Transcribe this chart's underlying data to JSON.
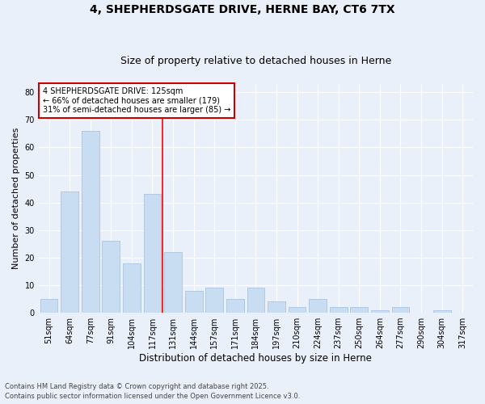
{
  "title1": "4, SHEPHERDSGATE DRIVE, HERNE BAY, CT6 7TX",
  "title2": "Size of property relative to detached houses in Herne",
  "xlabel": "Distribution of detached houses by size in Herne",
  "ylabel": "Number of detached properties",
  "categories": [
    "51sqm",
    "64sqm",
    "77sqm",
    "91sqm",
    "104sqm",
    "117sqm",
    "131sqm",
    "144sqm",
    "157sqm",
    "171sqm",
    "184sqm",
    "197sqm",
    "210sqm",
    "224sqm",
    "237sqm",
    "250sqm",
    "264sqm",
    "277sqm",
    "290sqm",
    "304sqm",
    "317sqm"
  ],
  "values": [
    5,
    44,
    66,
    26,
    18,
    43,
    22,
    8,
    9,
    5,
    9,
    4,
    2,
    5,
    2,
    2,
    1,
    2,
    0,
    1,
    0
  ],
  "bar_color": "#c9ddf2",
  "bar_edge_color": "#aac4e0",
  "red_line_index": 5,
  "annotation_title": "4 SHEPHERDSGATE DRIVE: 125sqm",
  "annotation_line2": "← 66% of detached houses are smaller (179)",
  "annotation_line3": "31% of semi-detached houses are larger (85) →",
  "annotation_box_color": "#ffffff",
  "annotation_border_color": "#cc0000",
  "ylim": [
    0,
    83
  ],
  "yticks": [
    0,
    10,
    20,
    30,
    40,
    50,
    60,
    70,
    80
  ],
  "footer1": "Contains HM Land Registry data © Crown copyright and database right 2025.",
  "footer2": "Contains public sector information licensed under the Open Government Licence v3.0.",
  "bg_color": "#eaf0fa",
  "plot_bg_color": "#eaf0fa",
  "grid_color": "#ffffff",
  "title1_fontsize": 10,
  "title2_fontsize": 9,
  "ylabel_fontsize": 8,
  "xlabel_fontsize": 8.5,
  "tick_fontsize": 7,
  "annot_fontsize": 7,
  "footer_fontsize": 6
}
